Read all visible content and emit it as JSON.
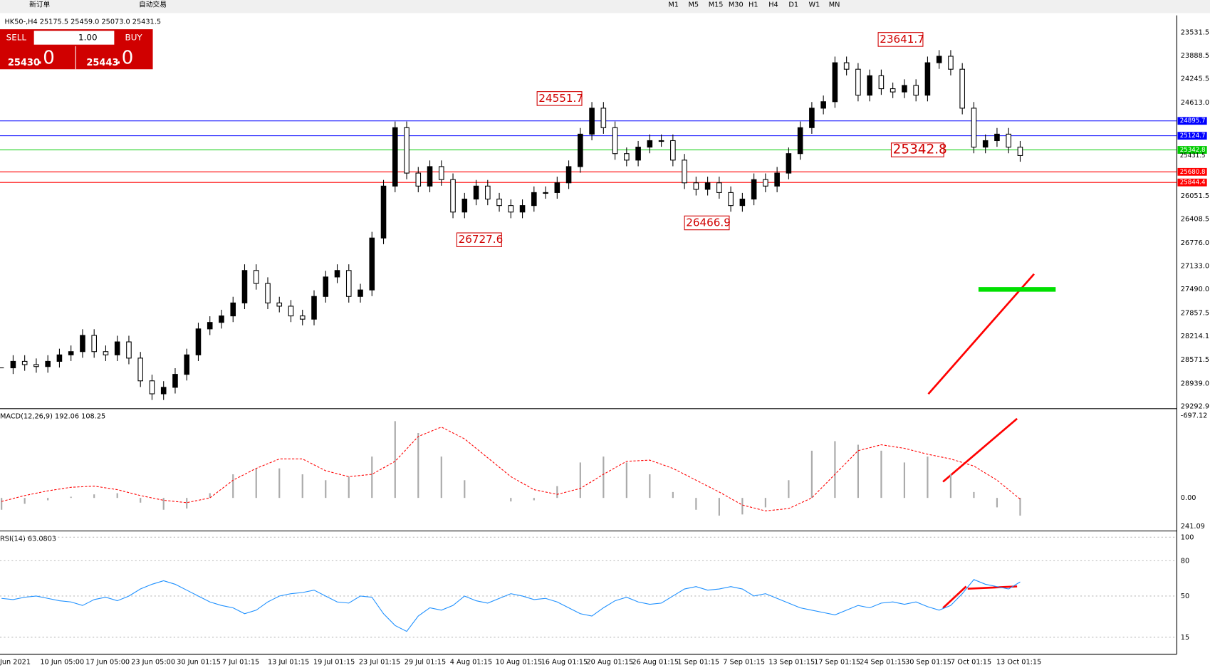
{
  "toolbar": {
    "new_order": "新订单",
    "auto_trading": "自动交易",
    "timeframes": [
      "M1",
      "M5",
      "M15",
      "M30",
      "H1",
      "H4",
      "D1",
      "W1",
      "MN"
    ]
  },
  "symbol_info": "HK50-,H4 25175.5 25459.0 25073.0 25431.5",
  "trade_panel": {
    "sell": "SELL",
    "volume": "1.00",
    "buy": "BUY",
    "bid_main": "25430",
    "bid_tail": ".0",
    "ask_main": "25443",
    "ask_tail": ".0"
  },
  "chart_data": [
    {
      "type": "candlestick",
      "x_labels": [
        "Jun 2021",
        "10 Jun 05:00",
        "17 Jun 05:00",
        "23 Jun 05:00",
        "30 Jun 01:15",
        "7 Jul 01:15",
        "13 Jul 01:15",
        "19 Jul 01:15",
        "23 Jul 01:15",
        "29 Jul 01:15",
        "4 Aug 01:15",
        "10 Aug 01:15",
        "16 Aug 01:15",
        "20 Aug 01:15",
        "26 Aug 01:15",
        "1 Sep 01:15",
        "7 Sep 01:15",
        "13 Sep 01:15",
        "17 Sep 01:15",
        "24 Sep 01:15",
        "30 Sep 01:15",
        "7 Oct 01:15",
        "13 Oct 01:15"
      ],
      "values": [
        28700,
        28600,
        28650,
        28680,
        28600,
        28500,
        28450,
        28200,
        28450,
        28500,
        28300,
        28550,
        28900,
        29100,
        29000,
        28800,
        28500,
        28100,
        28000,
        27900,
        27700,
        27200,
        27400,
        27700,
        27750,
        27900,
        27950,
        27600,
        27300,
        27200,
        27600,
        27500,
        26700,
        25900,
        25000,
        25700,
        25900,
        25600,
        25800,
        26300,
        26100,
        25900,
        26100,
        26200,
        26300,
        26200,
        26000,
        26000,
        25850,
        25600,
        25100,
        24700,
        25000,
        25400,
        25500,
        25300,
        25200,
        25200,
        25500,
        25850,
        25950,
        25850,
        26000,
        26200,
        26100,
        25800,
        25900,
        25700,
        25400,
        25000,
        24700,
        24600,
        24000,
        24100,
        24500,
        24200,
        24400,
        24450,
        24350,
        24500,
        24000,
        23900,
        24100,
        24700,
        25300,
        25200,
        25100,
        25300,
        25430
      ],
      "ylim": [
        23531.5,
        29292.9
      ],
      "yticks": [
        29292.9,
        {
          "value": 28939.0,
          "label": "28939.0"
        },
        28571.5,
        28214.1,
        27857.5,
        {
          "value": 27490.0,
          "label": "27490.0"
        },
        {
          "value": 27133.0,
          "label": "27133.0"
        },
        {
          "value": 26776.0,
          "label": "26776.0"
        },
        26408.5,
        26051.5,
        {
          "value": 24613.0,
          "label": "24613.0"
        },
        24245.5,
        23888.5,
        23531.5
      ],
      "levels": [
        {
          "value": 25844.4,
          "color": "#ff0000"
        },
        {
          "value": 25680.8,
          "color": "#ff0000"
        },
        {
          "value": 25342.8,
          "color": "#00cc00"
        },
        {
          "value": 25124.7,
          "color": "#0000ff"
        },
        {
          "value": 24895.7,
          "color": "#0000ff"
        }
      ],
      "current_price": 25431.5,
      "annotations": [
        26727.6,
        26466.9,
        24551.7,
        23641.7,
        25342.8
      ]
    },
    {
      "type": "macd",
      "title": "MACD(12,26,9) 192.06 108.25",
      "histogram": [
        100,
        50,
        20,
        -10,
        -30,
        -40,
        40,
        100,
        90,
        -40,
        -200,
        -250,
        -250,
        -200,
        -150,
        -180,
        -350,
        -650,
        -550,
        -350,
        -150,
        0,
        30,
        20,
        -100,
        -300,
        -350,
        -300,
        -200,
        -50,
        100,
        150,
        140,
        80,
        -150,
        -400,
        -480,
        -450,
        -400,
        -300,
        -350,
        -200,
        -50,
        80,
        150
      ],
      "signal": [
        30,
        -20,
        -60,
        -90,
        -100,
        -70,
        -20,
        20,
        40,
        0,
        -150,
        -250,
        -330,
        -330,
        -230,
        -180,
        -200,
        -310,
        -520,
        -600,
        -500,
        -340,
        -180,
        -70,
        -30,
        -80,
        -200,
        -310,
        -320,
        -250,
        -150,
        -50,
        60,
        110,
        90,
        0,
        -200,
        -400,
        -450,
        -420,
        -370,
        -330,
        -270,
        -150,
        10
      ],
      "ylim": [
        -697.12,
        241.09
      ],
      "yticks": [
        241.09,
        {
          "value": 0,
          "label": "0.00"
        },
        -697.12
      ]
    },
    {
      "type": "rsi",
      "title": "RSI(14) 63.0803",
      "color": "#1e90ff",
      "values": [
        48,
        47,
        49,
        50,
        48,
        46,
        45,
        42,
        47,
        49,
        46,
        50,
        56,
        60,
        63,
        60,
        55,
        50,
        45,
        42,
        40,
        35,
        38,
        45,
        50,
        52,
        53,
        55,
        50,
        45,
        44,
        50,
        49,
        35,
        25,
        20,
        33,
        40,
        38,
        42,
        50,
        46,
        44,
        48,
        52,
        50,
        47,
        48,
        45,
        40,
        35,
        33,
        40,
        46,
        49,
        45,
        43,
        44,
        50,
        56,
        58,
        55,
        56,
        58,
        56,
        50,
        52,
        48,
        44,
        40,
        38,
        36,
        34,
        38,
        42,
        40,
        44,
        45,
        43,
        45,
        41,
        38,
        42,
        52,
        64,
        60,
        58,
        56,
        62
      ],
      "ylim": [
        0,
        100
      ],
      "yticks": [
        100,
        80,
        50,
        15
      ]
    }
  ]
}
